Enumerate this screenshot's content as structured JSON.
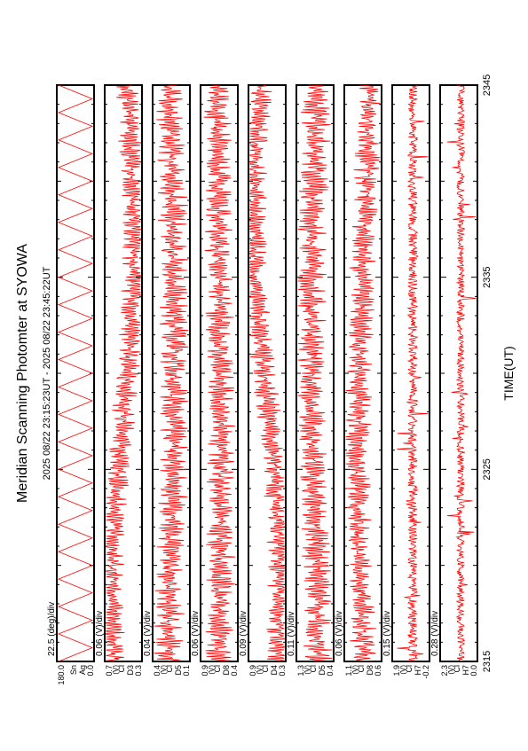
{
  "chart_data": {
    "type": "line",
    "title": "Meridian Scanning Photomter at SYOWA",
    "subtitle": "2025 08/22 23:15:23UT - 2025 08/22 23:45:22UT",
    "xlabel": "TIME(UT)",
    "xticks": [
      "2315",
      "2325",
      "2335",
      "2345"
    ],
    "xlim": [
      "23:15",
      "23:45"
    ],
    "line_color": "#ff0000",
    "panels": [
      {
        "kind": "scan",
        "scale": "22.5 (deg)/div",
        "unit_label": "",
        "yticks": [
          "180.0",
          "0.0"
        ],
        "ytick_labels": [
          "180.0",
          "0.0"
        ],
        "side_labels": [
          "Sn",
          "Ag"
        ],
        "cycles": 21
      },
      {
        "kind": "signal",
        "scale": "0.06 (V)/div",
        "unit_label": "(V)",
        "ytick_labels": [
          "0.7",
          "0.3"
        ],
        "side_labels": [
          "Cl",
          "D3"
        ],
        "amp": 0.7,
        "trend": 0.3
      },
      {
        "kind": "signal",
        "scale": "0.04 (V)/div",
        "unit_label": "(V)",
        "ytick_labels": [
          "0.4",
          "0.1"
        ],
        "side_labels": [
          "Cl",
          "D5"
        ],
        "amp": 0.85,
        "trend": 0.1
      },
      {
        "kind": "signal",
        "scale": "0.06 (V)/div",
        "unit_label": "(V)",
        "ytick_labels": [
          "0.9",
          "0.4"
        ],
        "side_labels": [
          "Cl",
          "D8"
        ],
        "amp": 0.8,
        "trend": 0.05
      },
      {
        "kind": "signal",
        "scale": "0.09 (V)/div",
        "unit_label": "(V)",
        "ytick_labels": [
          "0.9",
          "0.3"
        ],
        "side_labels": [
          "Cl",
          "D4"
        ],
        "amp": 0.7,
        "trend": 0.35
      },
      {
        "kind": "signal",
        "scale": "0.11 (V)/div",
        "unit_label": "(V)",
        "ytick_labels": [
          "1.3",
          "0.4"
        ],
        "side_labels": [
          "Cl",
          "D5"
        ],
        "amp": 0.85,
        "trend": 0.1
      },
      {
        "kind": "signal",
        "scale": "0.06 (V)/div",
        "unit_label": "(V)",
        "ytick_labels": [
          "1.1",
          "0.6"
        ],
        "side_labels": [
          "Cl",
          "D8"
        ],
        "amp": 0.75,
        "trend": 0.15
      },
      {
        "kind": "flat",
        "scale": "0.15 (V)/div",
        "unit_label": "(V)",
        "ytick_labels": [
          "1.9",
          "-0.2"
        ],
        "side_labels": [
          "Cl",
          "H7"
        ],
        "amp": 0.25,
        "trend": 0.2
      },
      {
        "kind": "flat",
        "scale": "0.28 (V)/div",
        "unit_label": "(V)",
        "ytick_labels": [
          "2.3",
          "0.0"
        ],
        "side_labels": [
          "Cl",
          "H7"
        ],
        "amp": 0.2,
        "trend": 0.1
      }
    ]
  }
}
